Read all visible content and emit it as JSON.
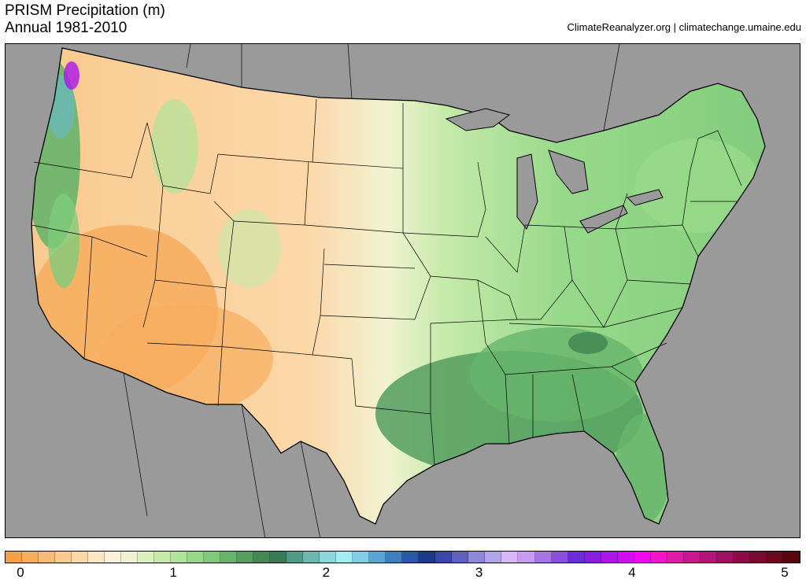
{
  "header": {
    "title": "PRISM Precipitation (m)",
    "subtitle": "Annual 1981-2010",
    "credit": "ClimateReanalyzer.org | climatechange.umaine.edu"
  },
  "map": {
    "region": "contiguous-us",
    "background_color": "#9a9a9a",
    "border_color": "#000000"
  },
  "legend": {
    "min": 0,
    "max": 5,
    "ticks": [
      {
        "value": 0,
        "label": "0"
      },
      {
        "value": 1,
        "label": "1"
      },
      {
        "value": 2,
        "label": "2"
      },
      {
        "value": 3,
        "label": "3"
      },
      {
        "value": 4,
        "label": "4"
      },
      {
        "value": 5,
        "label": "5"
      }
    ],
    "colors": [
      "#f5a04a",
      "#f7ad5e",
      "#f8bb75",
      "#f9c98d",
      "#fbd7a8",
      "#fde6c4",
      "#fcf1dc",
      "#f2f2d2",
      "#dcefc0",
      "#c6eaaa",
      "#afe49a",
      "#97d98a",
      "#7fca7b",
      "#67b56c",
      "#549e5f",
      "#468855",
      "#3a7a55",
      "#4f9a86",
      "#6ab8b0",
      "#8cd7dd",
      "#a3ecf4",
      "#80cde8",
      "#5aa5d4",
      "#3e7fc0",
      "#2a58a8",
      "#1b3a8a",
      "#3a48a8",
      "#6060c0",
      "#8f87d8",
      "#b3a5ea",
      "#d6b8f6",
      "#c99bf0",
      "#a973e8",
      "#8a4fe0",
      "#6b2bd8",
      "#8a1ee0",
      "#ad14e8",
      "#d20ef0",
      "#f00af0",
      "#f214c8",
      "#de1ca8",
      "#c81890",
      "#b41478",
      "#a01060",
      "#8c0c48",
      "#7a0a34",
      "#6a0820",
      "#5a060f"
    ]
  }
}
